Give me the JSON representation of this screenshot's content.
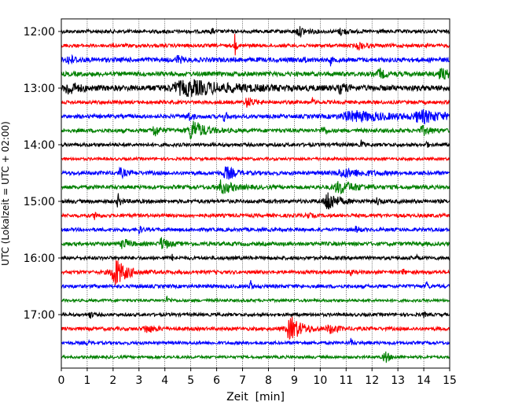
{
  "chart_data": {
    "type": "line",
    "subtype": "seismogram-helicorder",
    "xlabel": "Zeit  [min]",
    "ylabel": "UTC (Lokalzeit = UTC + 02:00)",
    "xlim": [
      0,
      15
    ],
    "x_ticks": [
      0,
      1,
      2,
      3,
      4,
      5,
      6,
      7,
      8,
      9,
      10,
      11,
      12,
      13,
      14,
      15
    ],
    "x_tick_labels": [
      "0",
      "1",
      "2",
      "3",
      "4",
      "5",
      "6",
      "7",
      "8",
      "9",
      "10",
      "11",
      "12",
      "13",
      "14",
      "15"
    ],
    "y_tick_labels": [
      "12:00",
      "13:00",
      "14:00",
      "15:00",
      "16:00",
      "17:00"
    ],
    "grid_x": true,
    "line_minutes": 15,
    "start_time": "12:00",
    "colors_cycle": [
      "#000000",
      "#ff0000",
      "#0000ff",
      "#008000"
    ],
    "traces": [
      {
        "start": "12:00",
        "amplitude": 1.0,
        "events": [
          {
            "t": 5.8,
            "a": 1.8,
            "d": 0.05
          },
          {
            "t": 9.2,
            "a": 1.6,
            "d": 0.3
          },
          {
            "t": 10.8,
            "a": 1.3,
            "d": 0.2
          }
        ]
      },
      {
        "start": "12:15",
        "amplitude": 1.0,
        "events": [
          {
            "t": 6.7,
            "a": 5.0,
            "d": 0.04
          },
          {
            "t": 11.5,
            "a": 1.4,
            "d": 0.2
          }
        ]
      },
      {
        "start": "12:30",
        "amplitude": 1.3,
        "events": [
          {
            "t": 0.3,
            "a": 1.8,
            "d": 0.2
          },
          {
            "t": 4.5,
            "a": 1.5,
            "d": 0.15
          },
          {
            "t": 9.4,
            "a": 2.0,
            "d": 0.05
          },
          {
            "t": 10.4,
            "a": 1.8,
            "d": 0.05
          }
        ]
      },
      {
        "start": "12:45",
        "amplitude": 1.3,
        "events": [
          {
            "t": 12.3,
            "a": 1.8,
            "d": 0.2
          },
          {
            "t": 14.7,
            "a": 2.0,
            "d": 0.3
          }
        ]
      },
      {
        "start": "13:00",
        "amplitude": 1.6,
        "events": [
          {
            "t": 0.3,
            "a": 2.5,
            "d": 0.3
          },
          {
            "t": 5.0,
            "a": 2.6,
            "d": 1.5
          },
          {
            "t": 10.8,
            "a": 1.6,
            "d": 0.2
          }
        ]
      },
      {
        "start": "13:15",
        "amplitude": 1.0,
        "events": [
          {
            "t": 7.2,
            "a": 2.0,
            "d": 0.2
          },
          {
            "t": 9.7,
            "a": 1.6,
            "d": 0.05
          }
        ]
      },
      {
        "start": "13:30",
        "amplitude": 1.1,
        "events": [
          {
            "t": 4.9,
            "a": 1.8,
            "d": 0.15
          },
          {
            "t": 6.3,
            "a": 1.8,
            "d": 0.1
          },
          {
            "t": 11.4,
            "a": 1.8,
            "d": 1.4
          },
          {
            "t": 14.0,
            "a": 2.0,
            "d": 0.8
          }
        ]
      },
      {
        "start": "13:45",
        "amplitude": 1.1,
        "events": [
          {
            "t": 3.6,
            "a": 2.3,
            "d": 0.2
          },
          {
            "t": 5.1,
            "a": 4.0,
            "d": 0.4
          },
          {
            "t": 10.1,
            "a": 2.2,
            "d": 0.1
          },
          {
            "t": 14.0,
            "a": 1.5,
            "d": 0.3
          }
        ]
      },
      {
        "start": "14:00",
        "amplitude": 1.0,
        "events": [
          {
            "t": 11.6,
            "a": 2.6,
            "d": 0.05
          },
          {
            "t": 14.1,
            "a": 1.5,
            "d": 0.05
          }
        ]
      },
      {
        "start": "14:15",
        "amplitude": 0.8,
        "events": []
      },
      {
        "start": "14:30",
        "amplitude": 1.1,
        "events": [
          {
            "t": 2.3,
            "a": 1.6,
            "d": 0.2
          },
          {
            "t": 6.4,
            "a": 2.4,
            "d": 0.3
          },
          {
            "t": 11.0,
            "a": 1.4,
            "d": 0.8
          }
        ]
      },
      {
        "start": "14:45",
        "amplitude": 1.1,
        "events": [
          {
            "t": 6.2,
            "a": 2.6,
            "d": 0.4
          },
          {
            "t": 10.8,
            "a": 2.2,
            "d": 0.6
          }
        ]
      },
      {
        "start": "15:00",
        "amplitude": 1.1,
        "events": [
          {
            "t": 2.2,
            "a": 2.5,
            "d": 0.1
          },
          {
            "t": 10.3,
            "a": 4.4,
            "d": 0.3
          },
          {
            "t": 12.2,
            "a": 1.4,
            "d": 0.1
          }
        ]
      },
      {
        "start": "15:15",
        "amplitude": 1.0,
        "events": [
          {
            "t": 1.3,
            "a": 1.5,
            "d": 0.1
          },
          {
            "t": 9.5,
            "a": 1.4,
            "d": 0.1
          }
        ]
      },
      {
        "start": "15:30",
        "amplitude": 1.0,
        "events": [
          {
            "t": 3.0,
            "a": 1.4,
            "d": 0.1
          },
          {
            "t": 11.4,
            "a": 1.4,
            "d": 0.1
          }
        ]
      },
      {
        "start": "15:45",
        "amplitude": 1.1,
        "events": [
          {
            "t": 2.4,
            "a": 2.0,
            "d": 0.2
          },
          {
            "t": 3.9,
            "a": 2.5,
            "d": 0.2
          }
        ]
      },
      {
        "start": "16:00",
        "amplitude": 1.0,
        "events": [
          {
            "t": 4.3,
            "a": 1.5,
            "d": 0.05
          },
          {
            "t": 13.7,
            "a": 1.3,
            "d": 0.05
          }
        ]
      },
      {
        "start": "16:15",
        "amplitude": 1.0,
        "events": [
          {
            "t": 2.1,
            "a": 5.5,
            "d": 0.4
          },
          {
            "t": 11.2,
            "a": 1.4,
            "d": 0.05
          },
          {
            "t": 13.2,
            "a": 1.5,
            "d": 0.05
          }
        ]
      },
      {
        "start": "16:30",
        "amplitude": 1.0,
        "events": [
          {
            "t": 7.3,
            "a": 2.8,
            "d": 0.05
          },
          {
            "t": 14.1,
            "a": 2.3,
            "d": 0.05
          }
        ]
      },
      {
        "start": "16:45",
        "amplitude": 0.8,
        "events": [
          {
            "t": 4.1,
            "a": 1.4,
            "d": 0.1
          }
        ]
      },
      {
        "start": "17:00",
        "amplitude": 0.9,
        "events": [
          {
            "t": 1.1,
            "a": 1.4,
            "d": 0.1
          },
          {
            "t": 14.0,
            "a": 1.3,
            "d": 0.05
          }
        ]
      },
      {
        "start": "17:15",
        "amplitude": 1.0,
        "events": [
          {
            "t": 3.3,
            "a": 1.4,
            "d": 0.3
          },
          {
            "t": 8.9,
            "a": 4.5,
            "d": 0.4
          },
          {
            "t": 10.4,
            "a": 1.5,
            "d": 0.3
          }
        ]
      },
      {
        "start": "17:30",
        "amplitude": 0.9,
        "events": [
          {
            "t": 1.0,
            "a": 1.3,
            "d": 0.05
          },
          {
            "t": 11.2,
            "a": 1.9,
            "d": 0.05
          }
        ]
      },
      {
        "start": "17:45",
        "amplitude": 0.8,
        "events": [
          {
            "t": 12.5,
            "a": 2.6,
            "d": 0.15
          }
        ]
      }
    ]
  }
}
